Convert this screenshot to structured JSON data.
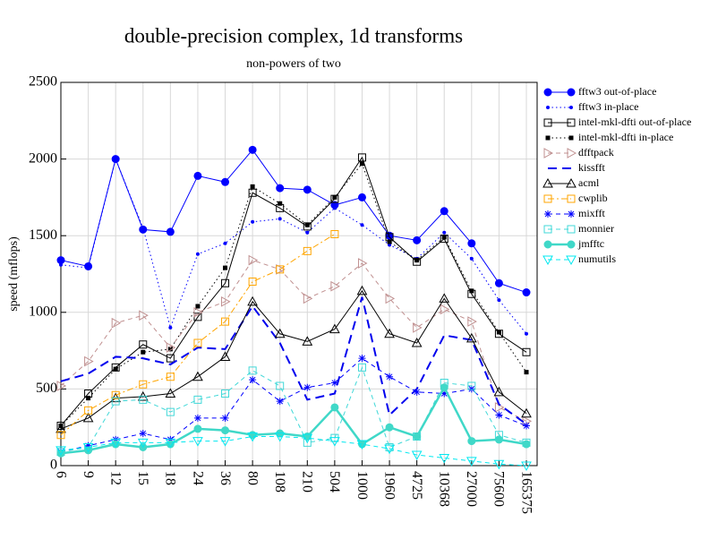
{
  "chart_data": {
    "type": "line",
    "title": "double-precision complex, 1d transforms",
    "subtitle": "non-powers of two",
    "y_label": "speed (mflops)",
    "categories": [
      "6",
      "9",
      "12",
      "15",
      "18",
      "24",
      "36",
      "80",
      "108",
      "210",
      "504",
      "1000",
      "1960",
      "4725",
      "10368",
      "27000",
      "75600",
      "165375"
    ],
    "ylim": [
      0,
      2500
    ],
    "yticks": [
      0,
      500,
      1000,
      1500,
      2000,
      2500
    ],
    "grid": true,
    "legend": "right",
    "series": [
      {
        "name": "fftw3 out-of-place",
        "color": "#0000ff",
        "marker": "circle",
        "dash": "solid",
        "values": [
          1340,
          1300,
          2000,
          1540,
          1525,
          1890,
          1850,
          2060,
          1810,
          1800,
          1700,
          1750,
          1500,
          1470,
          1660,
          1450,
          1190,
          1130
        ]
      },
      {
        "name": "fftw3 in-place",
        "color": "#0000ff",
        "marker": "dot",
        "dash": "dotted",
        "values": [
          1310,
          1290,
          2000,
          1550,
          900,
          1380,
          1450,
          1590,
          1610,
          1520,
          1680,
          1570,
          1440,
          1350,
          1520,
          1350,
          1080,
          860
        ]
      },
      {
        "name": "intel-mkl-dfti out-of-place",
        "color": "#000000",
        "marker": "square",
        "dash": "solid",
        "values": [
          260,
          470,
          640,
          790,
          700,
          970,
          1190,
          1780,
          1680,
          1560,
          1740,
          2010,
          1490,
          1330,
          1480,
          1120,
          860,
          740
        ]
      },
      {
        "name": "intel-mkl-dfti in-place",
        "color": "#000000",
        "marker": "smallsquare",
        "dash": "dotted",
        "values": [
          260,
          440,
          630,
          740,
          760,
          1040,
          1290,
          1820,
          1710,
          1570,
          1750,
          1970,
          1460,
          1340,
          1490,
          1140,
          870,
          610
        ]
      },
      {
        "name": "dfftpack",
        "color": "#c09090",
        "marker": "tri-right",
        "dash": "dashed",
        "values": [
          520,
          680,
          930,
          980,
          770,
          1000,
          1070,
          1340,
          1280,
          1090,
          1170,
          1320,
          1090,
          900,
          1020,
          940,
          380,
          290
        ]
      },
      {
        "name": "kissfft",
        "color": "#0000ee",
        "marker": "none",
        "dash": "longdash",
        "values": [
          550,
          600,
          710,
          700,
          660,
          770,
          760,
          1040,
          800,
          430,
          470,
          1100,
          330,
          500,
          850,
          820,
          400,
          270
        ]
      },
      {
        "name": "acml",
        "color": "#000000",
        "marker": "tri-up",
        "dash": "solid",
        "values": [
          240,
          310,
          440,
          450,
          470,
          580,
          710,
          1070,
          860,
          810,
          890,
          1140,
          860,
          800,
          1090,
          830,
          480,
          340
        ]
      },
      {
        "name": "cwplib",
        "color": "#ffa500",
        "marker": "square",
        "dash": "dashdot",
        "values": [
          200,
          360,
          460,
          530,
          580,
          800,
          940,
          1200,
          1280,
          1400,
          1510,
          null,
          null,
          null,
          null,
          null,
          null,
          null
        ]
      },
      {
        "name": "mixfft",
        "color": "#0000ff",
        "marker": "star",
        "dash": "dashed",
        "values": [
          90,
          130,
          170,
          210,
          170,
          310,
          310,
          560,
          420,
          510,
          540,
          700,
          580,
          480,
          470,
          500,
          330,
          260
        ]
      },
      {
        "name": "monnier",
        "color": "#40d8d8",
        "marker": "square",
        "dash": "dashed",
        "values": [
          90,
          120,
          420,
          430,
          350,
          430,
          470,
          620,
          520,
          150,
          180,
          640,
          120,
          190,
          540,
          520,
          200,
          150
        ]
      },
      {
        "name": "jmfftc",
        "color": "#40d8c8",
        "marker": "circle",
        "dash": "thick",
        "values": [
          80,
          100,
          140,
          120,
          140,
          240,
          230,
          200,
          210,
          190,
          380,
          140,
          250,
          190,
          510,
          160,
          170,
          140
        ]
      },
      {
        "name": "numutils",
        "color": "#00e8f0",
        "marker": "tri-down",
        "dash": "dashed",
        "values": [
          100,
          120,
          150,
          150,
          150,
          160,
          160,
          190,
          190,
          180,
          160,
          140,
          110,
          70,
          50,
          30,
          10,
          0
        ]
      }
    ]
  }
}
